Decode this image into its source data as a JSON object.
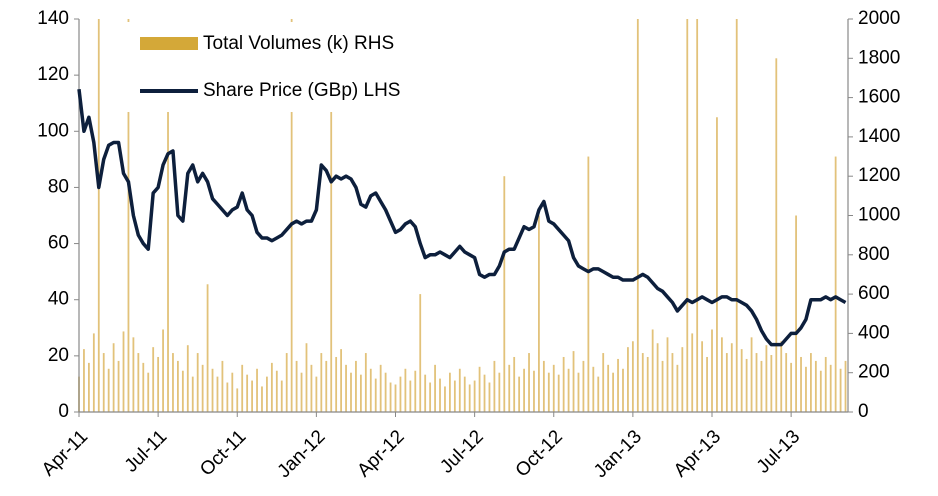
{
  "chart_data": {
    "type": "bar_line",
    "categories": [
      "Apr-11",
      null,
      null,
      null,
      null,
      null,
      null,
      null,
      null,
      null,
      null,
      null,
      null,
      null,
      null,
      null,
      "Jul-11",
      null,
      null,
      null,
      null,
      null,
      null,
      null,
      null,
      null,
      null,
      null,
      null,
      null,
      null,
      null,
      "Oct-11",
      null,
      null,
      null,
      null,
      null,
      null,
      null,
      null,
      null,
      null,
      null,
      null,
      null,
      null,
      null,
      "Jan-12",
      null,
      null,
      null,
      null,
      null,
      null,
      null,
      null,
      null,
      null,
      null,
      null,
      null,
      null,
      null,
      "Apr-12",
      null,
      null,
      null,
      null,
      null,
      null,
      null,
      null,
      null,
      null,
      null,
      null,
      null,
      null,
      null,
      "Jul-12",
      null,
      null,
      null,
      null,
      null,
      null,
      null,
      null,
      null,
      null,
      null,
      null,
      null,
      null,
      null,
      "Oct-12",
      null,
      null,
      null,
      null,
      null,
      null,
      null,
      null,
      null,
      null,
      null,
      null,
      null,
      null,
      null,
      "Jan-13",
      null,
      null,
      null,
      null,
      null,
      null,
      null,
      null,
      null,
      null,
      null,
      null,
      null,
      null,
      null,
      "Apr-13",
      null,
      null,
      null,
      null,
      null,
      null,
      null,
      null,
      null,
      null,
      null,
      null,
      null,
      null,
      null,
      "Jul-13",
      null,
      null,
      null,
      null,
      null,
      null,
      null,
      null,
      null,
      null,
      null
    ],
    "series": [
      {
        "name": "Total Volumes (k) RHS",
        "type": "bar",
        "axis": "y2",
        "color": "#e2c27a",
        "legend_color": "#d4a838",
        "values": [
          180,
          320,
          250,
          400,
          2000,
          300,
          220,
          350,
          260,
          410,
          2000,
          380,
          300,
          250,
          200,
          330,
          280,
          420,
          1900,
          300,
          260,
          210,
          340,
          180,
          300,
          240,
          650,
          220,
          180,
          260,
          150,
          200,
          120,
          240,
          190,
          160,
          220,
          130,
          180,
          250,
          210,
          160,
          300,
          2000,
          260,
          200,
          350,
          240,
          180,
          300,
          260,
          1700,
          280,
          320,
          240,
          200,
          260,
          190,
          300,
          220,
          170,
          240,
          200,
          150,
          140,
          180,
          220,
          160,
          210,
          600,
          190,
          150,
          240,
          170,
          130,
          200,
          160,
          220,
          180,
          140,
          160,
          230,
          190,
          150,
          260,
          200,
          1200,
          240,
          280,
          180,
          220,
          300,
          210,
          1000,
          260,
          200,
          240,
          190,
          280,
          220,
          310,
          200,
          260,
          1300,
          230,
          180,
          300,
          240,
          200,
          270,
          220,
          330,
          360,
          2000,
          300,
          280,
          420,
          350,
          260,
          380,
          300,
          240,
          330,
          2000,
          400,
          2000,
          360,
          280,
          420,
          1500,
          380,
          300,
          350,
          2000,
          320,
          270,
          380,
          300,
          260,
          340,
          290,
          1800,
          360,
          300,
          250,
          1000,
          280,
          230,
          300,
          260,
          210,
          280,
          240,
          1300,
          220,
          260
        ]
      },
      {
        "name": "Share Price (GBp) LHS",
        "type": "line",
        "axis": "y",
        "color": "#0d1f3c",
        "values": [
          115,
          100,
          105,
          96,
          80,
          90,
          95,
          96,
          96,
          85,
          82,
          70,
          63,
          60,
          58,
          78,
          80,
          88,
          92,
          93,
          70,
          68,
          85,
          88,
          82,
          85,
          82,
          76,
          74,
          72,
          70,
          72,
          73,
          78,
          72,
          70,
          64,
          62,
          62,
          61,
          62,
          63,
          65,
          67,
          68,
          67,
          68,
          68,
          72,
          88,
          86,
          82,
          84,
          83,
          84,
          83,
          80,
          74,
          73,
          77,
          78,
          75,
          72,
          68,
          64,
          65,
          67,
          68,
          66,
          60,
          55,
          56,
          56,
          57,
          56,
          55,
          57,
          59,
          57,
          56,
          55,
          49,
          48,
          49,
          49,
          52,
          57,
          58,
          58,
          62,
          66,
          65,
          66,
          72,
          75,
          68,
          67,
          65,
          63,
          61,
          55,
          52,
          51,
          50,
          51,
          51,
          50,
          49,
          48,
          48,
          47,
          47,
          47,
          48,
          49,
          48,
          46,
          44,
          43,
          41,
          39,
          36,
          38,
          40,
          39,
          40,
          41,
          40,
          39,
          40,
          41,
          41,
          40,
          40,
          39,
          38,
          36,
          33,
          29,
          26,
          24,
          24,
          24,
          26,
          28,
          28,
          30,
          33,
          40,
          40,
          40,
          41,
          40,
          41,
          40,
          39
        ]
      }
    ],
    "ylim": [
      0,
      140
    ],
    "yticks": [
      0,
      20,
      40,
      60,
      80,
      100,
      120,
      140
    ],
    "y2lim": [
      0,
      2000
    ],
    "y2ticks": [
      0,
      200,
      400,
      600,
      800,
      1000,
      1200,
      1400,
      1600,
      1800,
      2000
    ],
    "legend": "upper left",
    "grid": false
  }
}
